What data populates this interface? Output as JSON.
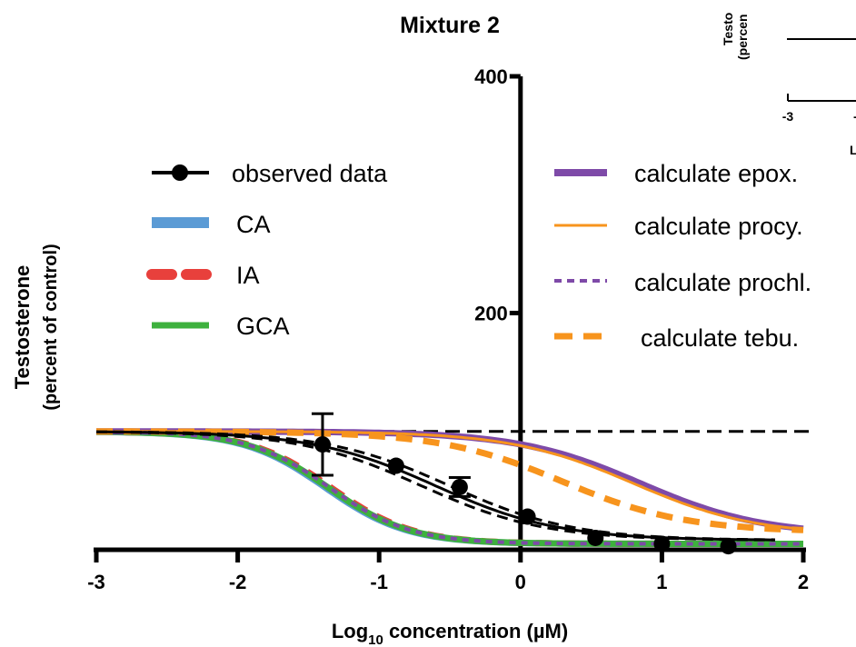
{
  "chart_data": {
    "type": "line",
    "title": "Mixture 2",
    "xlabel_main": "Log",
    "xlabel_sub": "10",
    "xlabel_rest": " concentration (µM)",
    "ylabel_line1": "Testosterone",
    "ylabel_line2": "(percent of control)",
    "xlim": [
      -3,
      2
    ],
    "ylim": [
      0,
      400
    ],
    "x_ticks": [
      -3,
      -2,
      -1,
      0,
      1,
      2
    ],
    "y_ticks": [
      200,
      400
    ],
    "x_tick_labels": [
      "-3",
      "-2",
      "-1",
      "0",
      "1",
      "2"
    ],
    "y_tick_labels": [
      "200",
      "400"
    ],
    "control_level": 100,
    "observed": {
      "name": "observed data",
      "x": [
        -1.4,
        -0.88,
        -0.43,
        0.05,
        0.53,
        1.0,
        1.47
      ],
      "y": [
        89,
        71,
        53,
        28,
        10,
        5,
        3
      ],
      "err": [
        26,
        0,
        8,
        0,
        0,
        0,
        0
      ]
    },
    "series": [
      {
        "name": "CA",
        "color": "#5b9bd5",
        "style": "solid-thick",
        "bottom": 5,
        "top": 100,
        "ec50": -1.38,
        "hill": 1.5
      },
      {
        "name": "IA",
        "color": "#e8403c",
        "style": "dash-thick",
        "bottom": 5,
        "top": 100,
        "ec50": -1.34,
        "hill": 1.5
      },
      {
        "name": "GCA",
        "color": "#3db13d",
        "style": "solid-thick",
        "bottom": 5,
        "top": 100,
        "ec50": -1.36,
        "hill": 1.5
      },
      {
        "name": "calculate epox.",
        "color": "#7e4aa8",
        "style": "solid-thick",
        "bottom": 12,
        "top": 100,
        "ec50": 0.85,
        "hill": 1.0
      },
      {
        "name": "calculate procy.",
        "color": "#f7941d",
        "style": "solid",
        "bottom": 12,
        "top": 100,
        "ec50": 0.8,
        "hill": 1.0
      },
      {
        "name": "calculate prochl.",
        "color": "#7e4aa8",
        "style": "dot",
        "bottom": 5,
        "top": 100,
        "ec50": -1.35,
        "hill": 1.5
      },
      {
        "name": "calculate  tebu.",
        "color": "#f7941d",
        "style": "dash-thick",
        "bottom": 15,
        "top": 100,
        "ec50": 0.3,
        "hill": 1.0
      }
    ],
    "fit": {
      "bottom": 8,
      "top": 100,
      "ec50": -0.6,
      "hill": 1.0,
      "ci_low_shift": -0.1,
      "ci_high_shift": 0.1
    },
    "legend_left": [
      "observed data",
      "CA",
      "IA",
      "GCA"
    ],
    "legend_right": [
      "calculate epox.",
      "calculate procy.",
      "calculate prochl.",
      "calculate  tebu."
    ],
    "inset": {
      "ylabel_1": "Testo",
      "ylabel_2": "(percen",
      "tick_1": "-3",
      "tick_2": "-",
      "xlabel": "L"
    }
  }
}
